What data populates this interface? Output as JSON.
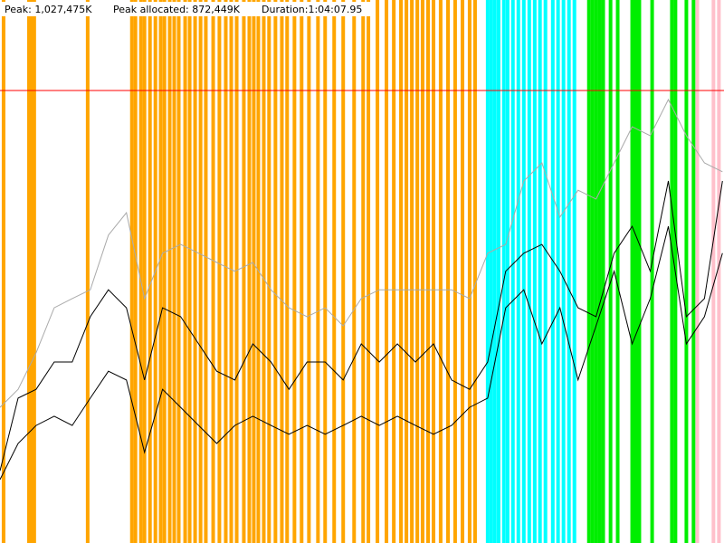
{
  "chart_data": {
    "type": "line",
    "texts": [
      "Peak: 1,027,475K",
      "Peak allocated: 872,449K",
      "Duration:1:04:07.95"
    ],
    "xlim": [
      0,
      3848
    ],
    "ylim": [
      0,
      1232970
    ],
    "x": [
      0,
      96,
      192,
      288,
      384,
      480,
      576,
      672,
      768,
      864,
      960,
      1056,
      1152,
      1248,
      1344,
      1440,
      1536,
      1632,
      1728,
      1824,
      1920,
      2016,
      2112,
      2208,
      2304,
      2400,
      2496,
      2592,
      2688,
      2784,
      2880,
      2976,
      3072,
      3168,
      3264,
      3360,
      3456,
      3552,
      3648,
      3744,
      3840
    ],
    "series": [
      {
        "color": "#aaaaaa",
        "values": [
          308000,
          349000,
          432000,
          534000,
          555000,
          575000,
          699000,
          750000,
          555000,
          658000,
          678000,
          658000,
          637000,
          617000,
          637000,
          575000,
          534000,
          514000,
          534000,
          493000,
          555000,
          575000,
          575000,
          575000,
          575000,
          575000,
          555000,
          658000,
          678000,
          822000,
          863000,
          740000,
          801000,
          781000,
          863000,
          945000,
          925000,
          1007000,
          925000,
          863000,
          843000
        ]
      },
      {
        "color": "#000000",
        "values": [
          164000,
          329000,
          349000,
          411000,
          411000,
          514000,
          575000,
          534000,
          370000,
          534000,
          514000,
          452000,
          390000,
          370000,
          452000,
          411000,
          349000,
          411000,
          411000,
          370000,
          452000,
          411000,
          452000,
          411000,
          452000,
          370000,
          349000,
          411000,
          617000,
          658000,
          678000,
          617000,
          534000,
          514000,
          658000,
          719000,
          617000,
          822000,
          514000,
          555000,
          822000
        ]
      },
      {
        "color": "#000000",
        "values": [
          144000,
          226000,
          267000,
          288000,
          267000,
          329000,
          390000,
          370000,
          206000,
          349000,
          308000,
          267000,
          226000,
          267000,
          288000,
          267000,
          247000,
          267000,
          247000,
          267000,
          288000,
          267000,
          288000,
          267000,
          247000,
          267000,
          308000,
          329000,
          534000,
          575000,
          452000,
          534000,
          370000,
          493000,
          617000,
          452000,
          555000,
          719000,
          452000,
          514000,
          658000
        ]
      }
    ],
    "reference_line": {
      "value": 1027475,
      "color": "#ff0000"
    },
    "event_groups": [
      {
        "color": "#ffa500",
        "x": [
          19,
          154,
          168,
          182,
          466,
          701,
          720,
          749,
          768,
          797,
          826,
          854,
          874,
          902,
          926,
          950,
          984,
          1008,
          1037,
          1066,
          1094,
          1133,
          1166,
          1200,
          1229,
          1258,
          1296,
          1325,
          1349,
          1373,
          1402,
          1430,
          1464,
          1498,
          1526,
          1565,
          1603,
          1642,
          1690,
          1728,
          1776,
          1824,
          1882,
          1930,
          1958,
          2006,
          2054,
          2093,
          2131,
          2160,
          2189,
          2218,
          2246,
          2275,
          2304,
          2342,
          2381,
          2419,
          2458,
          2496,
          2525
        ]
      },
      {
        "color": "#00ffff",
        "x": [
          2592,
          2611,
          2630,
          2650,
          2678,
          2698,
          2726,
          2755,
          2784,
          2813,
          2842,
          2870,
          2899,
          2938,
          2966,
          2995,
          3024,
          3053
        ]
      },
      {
        "color": "#00ee00",
        "x": [
          3130,
          3149,
          3168,
          3187,
          3206,
          3245,
          3283,
          3360,
          3379,
          3398,
          3466,
          3571,
          3590,
          3648,
          3686
        ]
      },
      {
        "color": "#ffc0cb",
        "x": [
          3706,
          3792,
          3821
        ]
      }
    ]
  }
}
